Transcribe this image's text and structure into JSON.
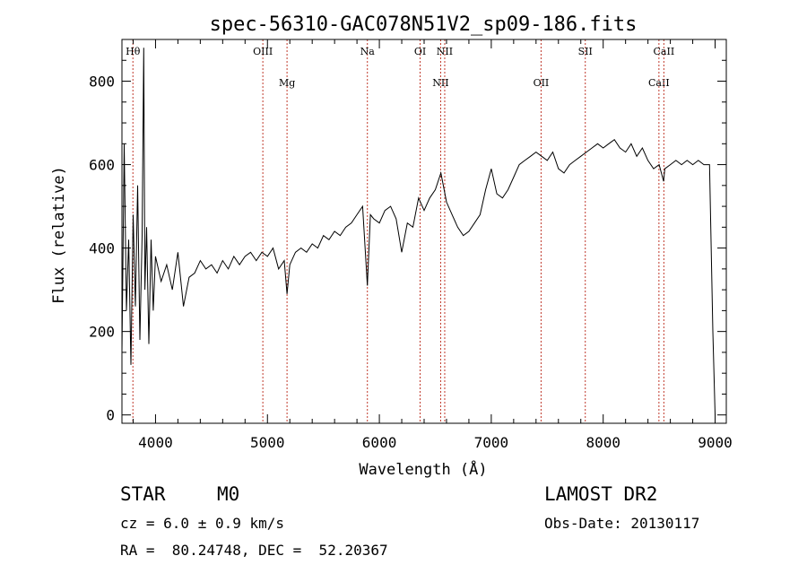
{
  "chart_data": {
    "type": "line",
    "title": "spec-56310-GAC078N51V2_sp09-186.fits",
    "xlabel": "Wavelength (Å)",
    "ylabel": "Flux (relative)",
    "xlim": [
      3700,
      9100
    ],
    "ylim": [
      -20,
      900
    ],
    "xticks": [
      4000,
      5000,
      6000,
      7000,
      8000,
      9000
    ],
    "yticks": [
      0,
      200,
      400,
      600,
      800
    ],
    "grid": false,
    "lines": [
      {
        "label": "Hθ",
        "x": 3798,
        "row": 0
      },
      {
        "label": "OIII",
        "x": 4959,
        "row": 0
      },
      {
        "label": "Mg",
        "x": 5175,
        "row": 1
      },
      {
        "label": "Na",
        "x": 5893,
        "row": 0
      },
      {
        "label": "OI",
        "x": 6364,
        "row": 0
      },
      {
        "label": "NII",
        "x": 6548,
        "row": 1
      },
      {
        "label": "NII",
        "x": 6584,
        "row": 0
      },
      {
        "label": "OII",
        "x": 7445,
        "row": 1
      },
      {
        "label": "SII",
        "x": 7840,
        "row": 0
      },
      {
        "label": "CaII",
        "x": 8498,
        "row": 1
      },
      {
        "label": "CaII",
        "x": 8542,
        "row": 0
      }
    ],
    "series": [
      {
        "x": [
          3700,
          3720,
          3740,
          3760,
          3780,
          3800,
          3820,
          3840,
          3860,
          3880,
          3895,
          3905,
          3920,
          3940,
          3960,
          3980,
          4000,
          4050,
          4100,
          4150,
          4200,
          4250,
          4300,
          4350,
          4400,
          4450,
          4500,
          4550,
          4600,
          4650,
          4700,
          4750,
          4800,
          4850,
          4900,
          4950,
          5000,
          5050,
          5100,
          5150,
          5175,
          5200,
          5250,
          5300,
          5350,
          5400,
          5450,
          5500,
          5550,
          5600,
          5650,
          5700,
          5750,
          5800,
          5850,
          5893,
          5920,
          5950,
          6000,
          6050,
          6100,
          6150,
          6200,
          6250,
          6300,
          6350,
          6400,
          6450,
          6500,
          6550,
          6600,
          6650,
          6700,
          6750,
          6800,
          6850,
          6900,
          6950,
          7000,
          7050,
          7100,
          7150,
          7200,
          7250,
          7300,
          7350,
          7400,
          7450,
          7500,
          7550,
          7600,
          7650,
          7700,
          7750,
          7800,
          7850,
          7900,
          7950,
          8000,
          8050,
          8100,
          8150,
          8200,
          8250,
          8300,
          8350,
          8400,
          8450,
          8500,
          8540,
          8550,
          8600,
          8650,
          8700,
          8750,
          8800,
          8850,
          8900,
          8950,
          8980,
          9000
        ],
        "y": [
          150,
          650,
          250,
          420,
          120,
          480,
          260,
          550,
          180,
          430,
          880,
          300,
          450,
          170,
          420,
          250,
          380,
          320,
          360,
          300,
          390,
          260,
          330,
          340,
          370,
          350,
          360,
          340,
          370,
          350,
          380,
          360,
          380,
          390,
          370,
          390,
          380,
          400,
          350,
          370,
          290,
          360,
          390,
          400,
          390,
          410,
          400,
          430,
          420,
          440,
          430,
          450,
          460,
          480,
          500,
          310,
          480,
          470,
          460,
          490,
          500,
          470,
          390,
          460,
          450,
          520,
          490,
          520,
          540,
          580,
          510,
          480,
          450,
          430,
          440,
          460,
          480,
          540,
          590,
          530,
          520,
          540,
          570,
          600,
          610,
          620,
          630,
          620,
          610,
          630,
          590,
          580,
          600,
          610,
          620,
          630,
          640,
          650,
          640,
          650,
          660,
          640,
          630,
          650,
          620,
          640,
          610,
          590,
          600,
          560,
          590,
          600,
          610,
          600,
          610,
          600,
          610,
          600,
          600,
          200,
          0
        ]
      }
    ],
    "footer": {
      "class": "STAR",
      "subclass": "M0",
      "survey": "LAMOST DR2",
      "cz": "cz = 6.0 ± 0.9 km/s",
      "obs_date": "Obs-Date: 20130117",
      "radec": "RA =  80.24748, DEC =  52.20367"
    }
  }
}
